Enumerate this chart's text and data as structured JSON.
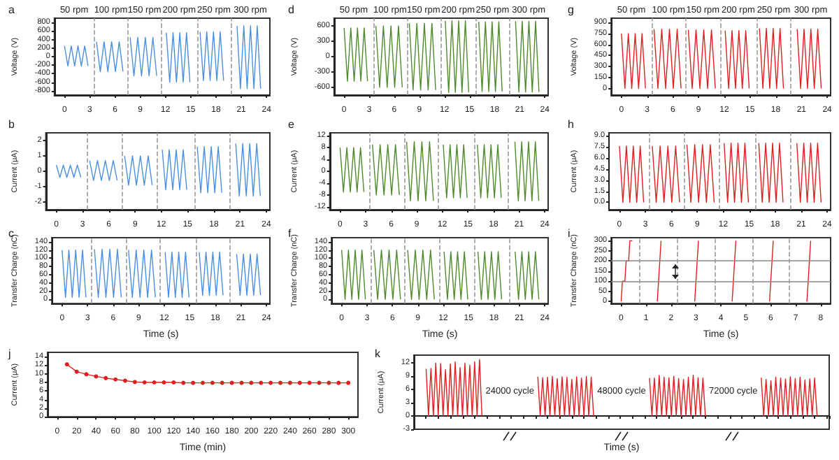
{
  "chart_data": [
    {
      "type": "line",
      "title": "a",
      "ylabel": "Voltage (V)",
      "annotations": [
        "50 rpm",
        "100 rpm",
        "150 rpm",
        "200 rpm",
        "250 rpm",
        "300 rpm"
      ],
      "xlim": [
        -1.2,
        24.4
      ],
      "xticks": [
        0,
        3,
        6,
        9,
        12,
        15,
        18,
        21,
        24
      ],
      "ylim": [
        -900,
        900
      ],
      "yticks": [
        -800,
        -600,
        -400,
        -200,
        0,
        200,
        400,
        600,
        800
      ],
      "color": "#4a90e2",
      "marker": "none",
      "ref_lines": [
        {
          "axis": "x",
          "value": 3.5,
          "color": "#999999",
          "line_style": "dashed"
        },
        {
          "axis": "x",
          "value": 7.5,
          "color": "#999999",
          "line_style": "dashed"
        },
        {
          "axis": "x",
          "value": 11.5,
          "color": "#999999",
          "line_style": "dashed"
        },
        {
          "axis": "x",
          "value": 15.75,
          "color": "#999999",
          "line_style": "dashed"
        },
        {
          "axis": "x",
          "value": 19.75,
          "color": "#999999",
          "line_style": "dashed"
        }
      ],
      "x": [
        0,
        0.4,
        0.8,
        1.2,
        1.6,
        2.0,
        2.4,
        2.8,
        3.4,
        3.8,
        4.25,
        4.7,
        5.15,
        5.6,
        6.05,
        6.5,
        6.95,
        7.4,
        7.8,
        8.25,
        8.7,
        9.15,
        9.6,
        10.05,
        10.5,
        10.95,
        11.6,
        12.1,
        12.5,
        12.9,
        13.3,
        13.7,
        14.1,
        14.5,
        14.9,
        15.5,
        16.1,
        16.5,
        16.9,
        17.3,
        17.7,
        18.1,
        18.5,
        18.9,
        19.7,
        20.5,
        20.9,
        21.3,
        21.7,
        22.1,
        22.5,
        22.9,
        23.3
      ],
      "values": [
        250,
        -220,
        250,
        -220,
        250,
        -220,
        250,
        -220,
        null,
        350,
        -350,
        350,
        -350,
        350,
        -350,
        350,
        -350,
        null,
        450,
        -450,
        450,
        -450,
        450,
        -450,
        450,
        -450,
        null,
        560,
        -600,
        560,
        -600,
        560,
        -600,
        560,
        -600,
        null,
        580,
        -560,
        580,
        -560,
        580,
        -560,
        580,
        -560,
        null,
        720,
        -750,
        720,
        -750,
        720,
        -750,
        720,
        -750
      ]
    },
    {
      "type": "line",
      "title": "b",
      "ylabel": "Current (μA)",
      "xlim": [
        -1.2,
        24.4
      ],
      "xticks": [
        0,
        3,
        6,
        9,
        12,
        15,
        18,
        21,
        24
      ],
      "ylim": [
        -2.5,
        2.5
      ],
      "yticks": [
        -2,
        -1,
        0,
        1,
        2
      ],
      "color": "#4a90e2",
      "marker": "none",
      "ref_lines": [
        {
          "axis": "x",
          "value": 3.5,
          "color": "#999999",
          "line_style": "dashed"
        },
        {
          "axis": "x",
          "value": 7.5,
          "color": "#999999",
          "line_style": "dashed"
        },
        {
          "axis": "x",
          "value": 11.5,
          "color": "#999999",
          "line_style": "dashed"
        },
        {
          "axis": "x",
          "value": 15.75,
          "color": "#999999",
          "line_style": "dashed"
        },
        {
          "axis": "x",
          "value": 19.75,
          "color": "#999999",
          "line_style": "dashed"
        }
      ],
      "x": [
        0,
        0.4,
        0.8,
        1.2,
        1.6,
        2.0,
        2.4,
        2.8,
        3.4,
        3.8,
        4.25,
        4.7,
        5.15,
        5.6,
        6.05,
        6.5,
        6.95,
        7.4,
        7.8,
        8.25,
        8.7,
        9.15,
        9.6,
        10.05,
        10.5,
        10.95,
        11.6,
        12.1,
        12.5,
        12.9,
        13.3,
        13.7,
        14.1,
        14.5,
        14.9,
        15.5,
        16.1,
        16.5,
        16.9,
        17.3,
        17.7,
        18.1,
        18.5,
        18.9,
        19.7,
        20.5,
        20.9,
        21.3,
        21.7,
        22.1,
        22.5,
        22.9,
        23.3
      ],
      "values": [
        0.4,
        -0.4,
        0.4,
        -0.4,
        0.4,
        -0.4,
        0.4,
        -0.4,
        null,
        0.7,
        -0.6,
        0.7,
        -0.6,
        0.7,
        -0.6,
        0.7,
        -0.6,
        null,
        1.0,
        -0.9,
        1.0,
        -0.9,
        1.0,
        -0.9,
        1.0,
        -0.9,
        null,
        1.4,
        -1.2,
        1.4,
        -1.2,
        1.4,
        -1.2,
        1.4,
        -1.2,
        null,
        1.6,
        -1.4,
        1.6,
        -1.4,
        1.6,
        -1.4,
        1.6,
        -1.4,
        null,
        1.8,
        -1.6,
        1.8,
        -1.6,
        1.8,
        -1.6,
        1.8,
        -1.6
      ]
    },
    {
      "type": "line",
      "title": "c",
      "xlabel": "Time (s)",
      "ylabel": "Transfer Charge (nC)",
      "xlim": [
        -1.2,
        24.4
      ],
      "xticks": [
        0,
        3,
        6,
        9,
        12,
        15,
        18,
        21,
        24
      ],
      "ylim": [
        -10,
        150
      ],
      "yticks": [
        0,
        20,
        40,
        60,
        80,
        100,
        120,
        140
      ],
      "color": "#4a90e2",
      "marker": "none",
      "ref_lines": [
        {
          "axis": "x",
          "value": 3.5,
          "color": "#999999",
          "line_style": "dashed"
        },
        {
          "axis": "x",
          "value": 7.5,
          "color": "#999999",
          "line_style": "dashed"
        },
        {
          "axis": "x",
          "value": 11.5,
          "color": "#999999",
          "line_style": "dashed"
        },
        {
          "axis": "x",
          "value": 15.75,
          "color": "#999999",
          "line_style": "dashed"
        },
        {
          "axis": "x",
          "value": 19.75,
          "color": "#999999",
          "line_style": "dashed"
        }
      ],
      "x": [
        0,
        0.4,
        0.8,
        1.2,
        1.6,
        2.0,
        2.4,
        2.8,
        3.4,
        3.8,
        4.25,
        4.7,
        5.15,
        5.6,
        6.05,
        6.5,
        6.95,
        7.4,
        7.8,
        8.25,
        8.7,
        9.15,
        9.6,
        10.05,
        10.5,
        10.95,
        11.6,
        12.1,
        12.5,
        12.9,
        13.3,
        13.7,
        14.1,
        14.5,
        14.9,
        15.5,
        16.1,
        16.5,
        16.9,
        17.3,
        17.7,
        18.1,
        18.5,
        18.9,
        19.7,
        20.5,
        20.9,
        21.3,
        21.7,
        22.1,
        22.5,
        22.9,
        23.3
      ],
      "values": [
        120,
        5,
        120,
        5,
        120,
        5,
        120,
        5,
        null,
        122,
        5,
        122,
        5,
        122,
        5,
        122,
        5,
        null,
        120,
        5,
        120,
        5,
        120,
        5,
        120,
        5,
        null,
        115,
        5,
        115,
        5,
        115,
        5,
        115,
        5,
        null,
        115,
        10,
        115,
        10,
        115,
        10,
        115,
        10,
        null,
        110,
        10,
        110,
        10,
        110,
        10,
        110,
        10
      ]
    },
    {
      "type": "line",
      "title": "d",
      "ylabel": "Voltage (V)",
      "annotations": [
        "50 rpm",
        "100 rpm",
        "150 rpm",
        "200 rpm",
        "250 rpm",
        "300 rpm"
      ],
      "xlim": [
        -1.2,
        24.4
      ],
      "xticks": [
        0,
        3,
        6,
        9,
        12,
        15,
        18,
        21,
        24
      ],
      "ylim": [
        -750,
        750
      ],
      "yticks": [
        -600,
        -300,
        0,
        300,
        600
      ],
      "color": "#4f8a2c",
      "marker": "none",
      "ref_lines": [
        {
          "axis": "x",
          "value": 3.5,
          "color": "#999999",
          "line_style": "dashed"
        },
        {
          "axis": "x",
          "value": 7.5,
          "color": "#999999",
          "line_style": "dashed"
        },
        {
          "axis": "x",
          "value": 11.5,
          "color": "#999999",
          "line_style": "dashed"
        },
        {
          "axis": "x",
          "value": 15.75,
          "color": "#999999",
          "line_style": "dashed"
        },
        {
          "axis": "x",
          "value": 19.75,
          "color": "#999999",
          "line_style": "dashed"
        }
      ],
      "x": [
        0,
        0.4,
        0.8,
        1.2,
        1.6,
        2.0,
        2.4,
        2.8,
        3.4,
        3.8,
        4.25,
        4.7,
        5.15,
        5.6,
        6.05,
        6.5,
        6.95,
        7.4,
        7.8,
        8.25,
        8.7,
        9.15,
        9.6,
        10.05,
        10.5,
        10.95,
        11.6,
        12.1,
        12.5,
        12.9,
        13.3,
        13.7,
        14.1,
        14.5,
        14.9,
        15.5,
        16.1,
        16.5,
        16.9,
        17.3,
        17.7,
        18.1,
        18.5,
        18.9,
        19.7,
        20.5,
        20.9,
        21.3,
        21.7,
        22.1,
        22.5,
        22.9,
        23.3
      ],
      "values": [
        560,
        -480,
        560,
        -480,
        560,
        -480,
        560,
        -480,
        null,
        600,
        -600,
        600,
        -600,
        600,
        -600,
        600,
        -600,
        null,
        650,
        -650,
        650,
        -650,
        650,
        -650,
        650,
        -650,
        null,
        700,
        -700,
        700,
        -700,
        700,
        -700,
        700,
        -700,
        null,
        680,
        -680,
        680,
        -680,
        680,
        -680,
        680,
        -680,
        null,
        690,
        -690,
        690,
        -690,
        690,
        -690,
        690,
        -690
      ]
    },
    {
      "type": "line",
      "title": "e",
      "ylabel": "Current (μA)",
      "xlim": [
        -1.2,
        24.4
      ],
      "xticks": [
        0,
        3,
        6,
        9,
        12,
        15,
        18,
        21,
        24
      ],
      "ylim": [
        -13,
        13
      ],
      "yticks": [
        -12,
        -8,
        -4,
        0,
        4,
        8,
        12
      ],
      "color": "#4f8a2c",
      "marker": "none",
      "ref_lines": [
        {
          "axis": "x",
          "value": 3.5,
          "color": "#999999",
          "line_style": "dashed"
        },
        {
          "axis": "x",
          "value": 7.5,
          "color": "#999999",
          "line_style": "dashed"
        },
        {
          "axis": "x",
          "value": 11.5,
          "color": "#999999",
          "line_style": "dashed"
        },
        {
          "axis": "x",
          "value": 15.75,
          "color": "#999999",
          "line_style": "dashed"
        },
        {
          "axis": "x",
          "value": 19.75,
          "color": "#999999",
          "line_style": "dashed"
        }
      ],
      "x": [
        0,
        0.4,
        0.8,
        1.2,
        1.6,
        2.0,
        2.4,
        2.8,
        3.4,
        3.8,
        4.25,
        4.7,
        5.15,
        5.6,
        6.05,
        6.5,
        6.95,
        7.4,
        7.8,
        8.25,
        8.7,
        9.15,
        9.6,
        10.05,
        10.5,
        10.95,
        11.6,
        12.1,
        12.5,
        12.9,
        13.3,
        13.7,
        14.1,
        14.5,
        14.9,
        15.5,
        16.1,
        16.5,
        16.9,
        17.3,
        17.7,
        18.1,
        18.5,
        18.9,
        19.7,
        20.5,
        20.9,
        21.3,
        21.7,
        22.1,
        22.5,
        22.9,
        23.3
      ],
      "values": [
        8,
        -7,
        8,
        -7,
        8,
        -7,
        8,
        -7,
        null,
        9,
        -8,
        9,
        -8,
        9,
        -8,
        9,
        -8,
        null,
        10,
        -10,
        10,
        -10,
        10,
        -10,
        10,
        -10,
        null,
        9,
        -9,
        9,
        -9,
        9,
        -9,
        9,
        -9,
        null,
        9,
        -9,
        9,
        -9,
        9,
        -9,
        9,
        -9,
        null,
        10,
        -10,
        10,
        -10,
        10,
        -10,
        10,
        -10
      ]
    },
    {
      "type": "line",
      "title": "f",
      "xlabel": "Time (s)",
      "ylabel": "Transfer Charge (nC)",
      "xlim": [
        -1.2,
        24.4
      ],
      "xticks": [
        0,
        3,
        6,
        9,
        12,
        15,
        18,
        21,
        24
      ],
      "ylim": [
        -10,
        150
      ],
      "yticks": [
        0,
        20,
        40,
        60,
        80,
        100,
        120,
        140
      ],
      "color": "#4f8a2c",
      "marker": "none",
      "ref_lines": [
        {
          "axis": "x",
          "value": 3.5,
          "color": "#999999",
          "line_style": "dashed"
        },
        {
          "axis": "x",
          "value": 7.5,
          "color": "#999999",
          "line_style": "dashed"
        },
        {
          "axis": "x",
          "value": 11.5,
          "color": "#999999",
          "line_style": "dashed"
        },
        {
          "axis": "x",
          "value": 15.75,
          "color": "#999999",
          "line_style": "dashed"
        },
        {
          "axis": "x",
          "value": 19.75,
          "color": "#999999",
          "line_style": "dashed"
        }
      ],
      "x": [
        0,
        0.4,
        0.8,
        1.2,
        1.6,
        2.0,
        2.4,
        2.8,
        3.4,
        3.8,
        4.25,
        4.7,
        5.15,
        5.6,
        6.05,
        6.5,
        6.95,
        7.4,
        7.8,
        8.25,
        8.7,
        9.15,
        9.6,
        10.05,
        10.5,
        10.95,
        11.6,
        12.1,
        12.5,
        12.9,
        13.3,
        13.7,
        14.1,
        14.5,
        14.9,
        15.5,
        16.1,
        16.5,
        16.9,
        17.3,
        17.7,
        18.1,
        18.5,
        18.9,
        19.7,
        20.5,
        20.9,
        21.3,
        21.7,
        22.1,
        22.5,
        22.9,
        23.3
      ],
      "values": [
        120,
        0,
        120,
        0,
        120,
        0,
        120,
        0,
        null,
        120,
        0,
        120,
        0,
        120,
        0,
        120,
        0,
        null,
        120,
        0,
        120,
        0,
        120,
        0,
        120,
        0,
        null,
        116,
        0,
        116,
        0,
        116,
        0,
        116,
        0,
        null,
        116,
        0,
        116,
        0,
        116,
        0,
        116,
        0,
        null,
        116,
        0,
        116,
        0,
        116,
        0,
        116,
        0
      ]
    },
    {
      "type": "line",
      "title": "g",
      "ylabel": "Voltage (V)",
      "annotations": [
        "50 rpm",
        "100 rpm",
        "150 rpm",
        "200 rpm",
        "250 rpm",
        "300 rpm"
      ],
      "xlim": [
        -1.2,
        24.4
      ],
      "xticks": [
        0,
        3,
        6,
        9,
        12,
        15,
        18,
        21,
        24
      ],
      "ylim": [
        -90,
        960
      ],
      "yticks": [
        0,
        150,
        300,
        450,
        600,
        750,
        900
      ],
      "color": "#e02020",
      "marker": "none",
      "ref_lines": [
        {
          "axis": "x",
          "value": 3.5,
          "color": "#999999",
          "line_style": "dashed"
        },
        {
          "axis": "x",
          "value": 7.5,
          "color": "#999999",
          "line_style": "dashed"
        },
        {
          "axis": "x",
          "value": 11.5,
          "color": "#999999",
          "line_style": "dashed"
        },
        {
          "axis": "x",
          "value": 15.75,
          "color": "#999999",
          "line_style": "dashed"
        },
        {
          "axis": "x",
          "value": 19.75,
          "color": "#999999",
          "line_style": "dashed"
        }
      ],
      "x": [
        0,
        0.4,
        0.8,
        1.2,
        1.6,
        2.0,
        2.4,
        2.8,
        3.4,
        3.8,
        4.25,
        4.7,
        5.15,
        5.6,
        6.05,
        6.5,
        6.95,
        7.4,
        7.8,
        8.25,
        8.7,
        9.15,
        9.6,
        10.05,
        10.5,
        10.95,
        11.6,
        12.1,
        12.5,
        12.9,
        13.3,
        13.7,
        14.1,
        14.5,
        14.9,
        15.5,
        16.1,
        16.5,
        16.9,
        17.3,
        17.7,
        18.1,
        18.5,
        18.9,
        19.7,
        20.5,
        20.9,
        21.3,
        21.7,
        22.1,
        22.5,
        22.9,
        23.3
      ],
      "values": [
        750,
        0,
        750,
        0,
        750,
        0,
        750,
        0,
        null,
        810,
        0,
        810,
        0,
        810,
        0,
        810,
        0,
        null,
        800,
        0,
        800,
        0,
        800,
        0,
        800,
        0,
        null,
        790,
        0,
        790,
        0,
        790,
        0,
        790,
        0,
        null,
        820,
        0,
        820,
        0,
        820,
        0,
        820,
        0,
        null,
        810,
        0,
        810,
        0,
        810,
        0,
        810,
        0
      ]
    },
    {
      "type": "line",
      "title": "h",
      "ylabel": "Current (μA)",
      "xlim": [
        -1.2,
        24.4
      ],
      "xticks": [
        0,
        3,
        6,
        9,
        12,
        15,
        18,
        21,
        24
      ],
      "ylim": [
        -1,
        9.4
      ],
      "yticks": [
        {
          "value": 0,
          "label": "0.0"
        },
        {
          "value": 1.5,
          "label": "1.5"
        },
        {
          "value": 3,
          "label": "3.0"
        },
        {
          "value": 4.5,
          "label": "4.5"
        },
        {
          "value": 6,
          "label": "6.0"
        },
        {
          "value": 7.5,
          "label": "7.5"
        },
        {
          "value": 9,
          "label": "9.0"
        }
      ],
      "color": "#e02020",
      "marker": "none",
      "ref_lines": [
        {
          "axis": "x",
          "value": 3.5,
          "color": "#999999",
          "line_style": "dashed"
        },
        {
          "axis": "x",
          "value": 7.5,
          "color": "#999999",
          "line_style": "dashed"
        },
        {
          "axis": "x",
          "value": 11.5,
          "color": "#999999",
          "line_style": "dashed"
        },
        {
          "axis": "x",
          "value": 15.75,
          "color": "#999999",
          "line_style": "dashed"
        },
        {
          "axis": "x",
          "value": 19.75,
          "color": "#999999",
          "line_style": "dashed"
        }
      ],
      "x": [
        0,
        0.4,
        0.8,
        1.2,
        1.6,
        2.0,
        2.4,
        2.8,
        3.4,
        3.8,
        4.25,
        4.7,
        5.15,
        5.6,
        6.05,
        6.5,
        6.95,
        7.4,
        7.8,
        8.25,
        8.7,
        9.15,
        9.6,
        10.05,
        10.5,
        10.95,
        11.6,
        12.1,
        12.5,
        12.9,
        13.3,
        13.7,
        14.1,
        14.5,
        14.9,
        15.5,
        16.1,
        16.5,
        16.9,
        17.3,
        17.7,
        18.1,
        18.5,
        18.9,
        19.7,
        20.5,
        20.9,
        21.3,
        21.7,
        22.1,
        22.5,
        22.9,
        23.3
      ],
      "values": [
        7.6,
        0,
        7.6,
        0,
        7.6,
        0,
        7.6,
        0,
        null,
        7.6,
        0,
        7.6,
        0,
        7.6,
        0,
        7.6,
        0,
        null,
        7.8,
        0,
        7.8,
        0,
        7.8,
        0,
        7.8,
        0,
        null,
        8.0,
        0,
        8.0,
        0,
        8.0,
        0,
        8.0,
        0,
        null,
        8.0,
        0,
        8.0,
        0,
        8.0,
        0,
        8.0,
        0,
        null,
        8.0,
        0,
        8.0,
        0,
        8.0,
        0,
        8.0,
        0
      ]
    },
    {
      "type": "line",
      "title": "i",
      "xlabel": "Time (s)",
      "ylabel": "Transfer Charge (nC)",
      "xlim": [
        -0.4,
        8.4
      ],
      "xticks": [
        0,
        1,
        2,
        3,
        4,
        5,
        6,
        7,
        8
      ],
      "ylim": [
        -10,
        315
      ],
      "yticks": [
        0,
        50,
        100,
        150,
        200,
        250,
        300
      ],
      "color": "#e02020",
      "marker": "none",
      "ref_lines": [
        {
          "axis": "y",
          "value": 100,
          "color": "#888888",
          "line_style": "solid"
        },
        {
          "axis": "y",
          "value": 200,
          "color": "#888888",
          "line_style": "solid"
        },
        {
          "axis": "x",
          "value": 0.75,
          "color": "#999999",
          "line_style": "dashed"
        },
        {
          "axis": "x",
          "value": 2.25,
          "color": "#999999",
          "line_style": "dashed"
        },
        {
          "axis": "x",
          "value": 3.75,
          "color": "#999999",
          "line_style": "dashed"
        },
        {
          "axis": "x",
          "value": 5.25,
          "color": "#999999",
          "line_style": "dashed"
        },
        {
          "axis": "x",
          "value": 6.75,
          "color": "#999999",
          "line_style": "dashed"
        }
      ],
      "x": [
        0,
        0.05,
        0.15,
        0.2,
        0.3,
        0.35,
        0.45,
        0.7,
        1.45,
        1.5,
        1.55,
        1.6,
        1.9,
        2.95,
        3.0,
        3.05,
        3.1,
        3.4,
        4.45,
        4.5,
        4.55,
        4.6,
        4.9,
        5.95,
        6.0,
        6.05,
        6.1,
        6.4,
        7.45,
        7.5,
        7.55,
        7.6
      ],
      "values": [
        0,
        100,
        100,
        200,
        200,
        300,
        300,
        null,
        0,
        100,
        200,
        300,
        null,
        0,
        100,
        200,
        300,
        null,
        0,
        100,
        200,
        300,
        null,
        0,
        100,
        200,
        300,
        null,
        0,
        100,
        200,
        300
      ]
    },
    {
      "type": "line",
      "title": "j",
      "xlabel": "Time (min)",
      "ylabel": "Current (μA)",
      "xlim": [
        -10,
        310
      ],
      "xticks": [
        0,
        20,
        40,
        60,
        80,
        100,
        120,
        140,
        160,
        180,
        200,
        220,
        240,
        260,
        280,
        300
      ],
      "ylim": [
        0,
        15
      ],
      "yticks": [
        0,
        2,
        4,
        6,
        8,
        10,
        12,
        14
      ],
      "color": "#e02020",
      "marker": "circle",
      "x": [
        10,
        20,
        30,
        40,
        50,
        60,
        70,
        80,
        90,
        100,
        110,
        120,
        130,
        140,
        150,
        160,
        170,
        180,
        190,
        200,
        210,
        220,
        230,
        240,
        250,
        260,
        270,
        280,
        290,
        300
      ],
      "values": [
        12.2,
        10.5,
        9.9,
        9.4,
        9.0,
        8.7,
        8.4,
        8.1,
        8.0,
        8.0,
        8.0,
        8.0,
        7.9,
        7.9,
        7.9,
        7.9,
        7.9,
        7.9,
        7.9,
        7.9,
        7.9,
        7.9,
        7.9,
        7.9,
        7.9,
        7.9,
        7.9,
        7.9,
        7.9,
        7.9
      ]
    },
    {
      "type": "line",
      "title": "k",
      "xlabel": "Time (s)",
      "ylabel": "Current (μA)",
      "annotations": [
        "24000 cycle",
        "48000 cycle",
        "72000 cycle"
      ],
      "ylim": [
        -3,
        13.8
      ],
      "yticks": [
        -3,
        0,
        3,
        6,
        9,
        12
      ],
      "tick_labels": "y",
      "color": "#e02020",
      "marker": "none",
      "categories": [
        null,
        null,
        null,
        null,
        null,
        null,
        null,
        null,
        null,
        null,
        null,
        null,
        null,
        null,
        null,
        null,
        null,
        null,
        null,
        null,
        null,
        null,
        null,
        null,
        null,
        null,
        null,
        null,
        null,
        null,
        null,
        null,
        null,
        null,
        null,
        null,
        null,
        null,
        null,
        null,
        null,
        null,
        null,
        null,
        null,
        null,
        null,
        null,
        null,
        null,
        null,
        null,
        null,
        null,
        null,
        null,
        null,
        null,
        null,
        null,
        null,
        null,
        null,
        null,
        null,
        null,
        null,
        null,
        null,
        null,
        null,
        null,
        null,
        null,
        null,
        null,
        null,
        null,
        null,
        null,
        null,
        null,
        null,
        null,
        null,
        null,
        null,
        null,
        null,
        null,
        null,
        null,
        null,
        null,
        null,
        null,
        null,
        null,
        null,
        null,
        null,
        null,
        null,
        null,
        null,
        null,
        null,
        null,
        null,
        null,
        null,
        null,
        null,
        null,
        null,
        null,
        null,
        null,
        null,
        null,
        null,
        null,
        null,
        null,
        null,
        null,
        null,
        null,
        null,
        null,
        null,
        null,
        null,
        null,
        null,
        null,
        null,
        null,
        null,
        null,
        null,
        null,
        null,
        null,
        null,
        null,
        null,
        null,
        null,
        null,
        null,
        null,
        null,
        null,
        null,
        null,
        null,
        null,
        null,
        null,
        null,
        null,
        null,
        null,
        null,
        null,
        null,
        null,
        null,
        null,
        null,
        null
      ],
      "values": [
        null,
        null,
        null,
        null,
        null,
        10.7,
        0,
        10.8,
        0,
        12.0,
        0,
        11.9,
        0,
        10.5,
        0,
        11.8,
        0,
        12.3,
        0,
        11.0,
        0,
        12.0,
        0,
        11.5,
        0,
        12.3,
        0,
        12.8,
        0,
        null,
        null,
        null,
        null,
        null,
        null,
        null,
        null,
        null,
        null,
        null,
        null,
        null,
        null,
        null,
        null,
        null,
        null,
        null,
        null,
        null,
        null,
        8.9,
        0,
        8.7,
        0,
        8.8,
        0,
        9.0,
        0,
        8.5,
        0,
        8.9,
        0,
        8.8,
        0,
        8.3,
        0,
        8.9,
        0,
        8.6,
        0,
        9.0,
        0,
        8.8,
        0,
        null,
        null,
        null,
        null,
        null,
        null,
        null,
        null,
        null,
        null,
        null,
        null,
        null,
        null,
        null,
        null,
        null,
        null,
        null,
        null,
        null,
        null,
        8.6,
        0,
        8.6,
        0,
        9.2,
        0,
        8.8,
        0,
        8.7,
        0,
        9.0,
        0,
        8.5,
        0,
        8.3,
        0,
        8.8,
        0,
        9.3,
        0,
        8.7,
        0,
        8.6,
        0,
        null,
        null,
        null,
        null,
        null,
        null,
        null,
        null,
        null,
        null,
        null,
        null,
        null,
        null,
        null,
        null,
        null,
        null,
        null,
        null,
        null,
        null,
        8.7,
        0,
        8.3,
        0,
        8.0,
        0,
        8.8,
        0,
        8.6,
        0,
        8.4,
        0,
        8.9,
        0,
        8.5,
        0,
        8.8,
        0,
        8.2,
        0,
        8.4,
        0,
        8.6,
        0,
        null,
        null,
        null,
        null,
        null
      ]
    }
  ]
}
